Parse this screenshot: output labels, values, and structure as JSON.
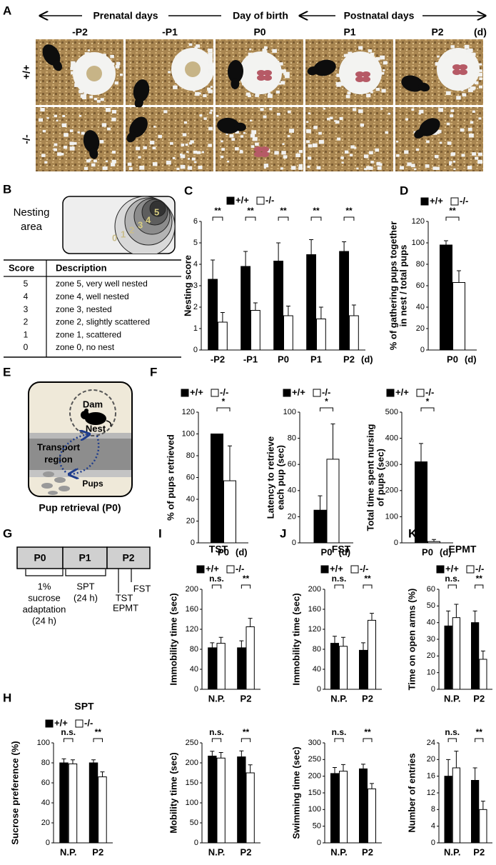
{
  "panel_a": {
    "label": "A",
    "header": [
      "Prenatal days",
      "Day of birth",
      "Postnatal days"
    ],
    "columns": [
      "-P2",
      "-P1",
      "P0",
      "P1",
      "P2"
    ],
    "unit": "(d)",
    "rows": [
      "+/+",
      "-/-"
    ]
  },
  "panel_b": {
    "label": "B",
    "diagram_label": [
      "Nesting",
      "area"
    ],
    "zones": [
      "0",
      "1",
      "2",
      "3",
      "4",
      "5"
    ],
    "table": {
      "header": [
        "Score",
        "Description"
      ],
      "rows": [
        [
          5,
          "zone 5, very well nested"
        ],
        [
          4,
          "zone 4, well nested"
        ],
        [
          3,
          "zone 3, nested"
        ],
        [
          2,
          "zone 2, slightly scattered"
        ],
        [
          1,
          "zone 1, scattered"
        ],
        [
          0,
          "zone 0, no nest"
        ]
      ]
    }
  },
  "panel_e": {
    "label": "E",
    "dam": "Dam",
    "nest": "Nest",
    "region": [
      "Transport",
      "region"
    ],
    "pups": "Pups",
    "caption": "Pup retrieval (P0)"
  },
  "panel_g": {
    "label": "G",
    "days": [
      "P0",
      "P1",
      "P2"
    ],
    "sucrose": [
      "1%",
      "sucrose",
      "adaptation",
      "(24 h)"
    ],
    "spt": [
      "SPT",
      "(24 h)"
    ],
    "tests": [
      "TST",
      "EPMT",
      "FST"
    ]
  },
  "chart_data": [
    {
      "type": "bar",
      "panel": "C",
      "ylabel": [
        "Nesting score"
      ],
      "categories": [
        "-P2",
        "-P1",
        "P0",
        "P1",
        "P2"
      ],
      "x_unit": "(d)",
      "series": [
        {
          "name": "+/+",
          "color": "#000000",
          "values": [
            3.3,
            3.9,
            4.15,
            4.45,
            4.6
          ],
          "errors": [
            0.9,
            0.7,
            0.85,
            0.7,
            0.45
          ]
        },
        {
          "name": "-/-",
          "color": "#ffffff",
          "values": [
            1.3,
            1.85,
            1.6,
            1.45,
            1.6
          ],
          "errors": [
            0.45,
            0.35,
            0.45,
            0.55,
            0.5
          ]
        }
      ],
      "significance": [
        "**",
        "**",
        "**",
        "**",
        "**"
      ],
      "ylim": [
        0,
        6
      ],
      "yticks": [
        0,
        1,
        2,
        3,
        4,
        5,
        6
      ]
    },
    {
      "type": "bar",
      "panel": "D",
      "ylabel": [
        "% of gathering pups together",
        "in nest / total pups"
      ],
      "categories": [
        "P0"
      ],
      "x_unit": "(d)",
      "series": [
        {
          "name": "+/+",
          "color": "#000000",
          "values": [
            98
          ],
          "errors": [
            4
          ]
        },
        {
          "name": "-/-",
          "color": "#ffffff",
          "values": [
            63
          ],
          "errors": [
            11
          ]
        }
      ],
      "significance": [
        "**"
      ],
      "ylim": [
        0,
        120
      ],
      "yticks": [
        0,
        20,
        40,
        60,
        80,
        100,
        120
      ]
    },
    {
      "type": "bar",
      "panel": "F",
      "ylabel": [
        "% of pups retrieved"
      ],
      "categories": [
        "P0"
      ],
      "x_unit": "(d)",
      "series": [
        {
          "name": "+/+",
          "color": "#000000",
          "values": [
            100
          ],
          "errors": [
            0
          ]
        },
        {
          "name": "-/-",
          "color": "#ffffff",
          "values": [
            57
          ],
          "errors": [
            32
          ]
        }
      ],
      "significance": [
        "*"
      ],
      "ylim": [
        0,
        120
      ],
      "yticks": [
        0,
        20,
        40,
        60,
        80,
        100,
        120
      ]
    },
    {
      "type": "bar",
      "ylabel": [
        "Latency to retrieve",
        "each pup (sec)"
      ],
      "categories": [
        "P0"
      ],
      "x_unit": "(d)",
      "series": [
        {
          "name": "+/+",
          "color": "#000000",
          "values": [
            25
          ],
          "errors": [
            11
          ]
        },
        {
          "name": "-/-",
          "color": "#ffffff",
          "values": [
            64
          ],
          "errors": [
            27
          ]
        }
      ],
      "significance": [
        "*"
      ],
      "ylim": [
        0,
        100
      ],
      "yticks": [
        0,
        20,
        40,
        60,
        80,
        100
      ]
    },
    {
      "type": "bar",
      "ylabel": [
        "Total time spent nursing",
        "of pups (sec)"
      ],
      "categories": [
        "P0"
      ],
      "x_unit": "(d)",
      "series": [
        {
          "name": "+/+",
          "color": "#000000",
          "values": [
            310
          ],
          "errors": [
            70
          ]
        },
        {
          "name": "-/-",
          "color": "#ffffff",
          "values": [
            5
          ],
          "errors": [
            8
          ]
        }
      ],
      "significance": [
        "*"
      ],
      "ylim": [
        0,
        500
      ],
      "yticks": [
        0,
        100,
        200,
        300,
        400,
        500
      ]
    },
    {
      "type": "bar",
      "panel": "H",
      "title": "SPT",
      "ylabel": [
        "Sucrose preference (%)"
      ],
      "categories": [
        "N.P.",
        "P2"
      ],
      "series": [
        {
          "name": "+/+",
          "color": "#000000",
          "values": [
            80,
            80
          ],
          "errors": [
            4,
            3
          ]
        },
        {
          "name": "-/-",
          "color": "#ffffff",
          "values": [
            79,
            66
          ],
          "errors": [
            4,
            5
          ]
        }
      ],
      "significance": [
        "n.s.",
        "**"
      ],
      "ylim": [
        0,
        100
      ],
      "yticks": [
        0,
        20,
        40,
        60,
        80,
        100
      ]
    },
    {
      "type": "bar",
      "panel": "I",
      "title": "TST",
      "ylabel": [
        "Immobility time (sec)"
      ],
      "categories": [
        "N.P.",
        "P2"
      ],
      "series": [
        {
          "name": "+/+",
          "color": "#000000",
          "values": [
            83,
            83
          ],
          "errors": [
            10,
            14
          ]
        },
        {
          "name": "-/-",
          "color": "#ffffff",
          "values": [
            92,
            125
          ],
          "errors": [
            12,
            17
          ]
        }
      ],
      "significance": [
        "n.s.",
        "**"
      ],
      "ylim": [
        0,
        200
      ],
      "yticks": [
        0,
        40,
        80,
        120,
        160,
        200
      ]
    },
    {
      "type": "bar",
      "ylabel": [
        "Mobility time (sec)"
      ],
      "categories": [
        "N.P.",
        "P2"
      ],
      "series": [
        {
          "color": "#000000",
          "values": [
            217,
            215
          ],
          "errors": [
            12,
            15
          ]
        },
        {
          "color": "#ffffff",
          "values": [
            212,
            175
          ],
          "errors": [
            14,
            20
          ]
        }
      ],
      "significance": [
        "n.s.",
        "**"
      ],
      "ylim": [
        0,
        250
      ],
      "yticks": [
        0,
        50,
        100,
        150,
        200,
        250
      ]
    },
    {
      "type": "bar",
      "panel": "J",
      "title": "FST",
      "ylabel": [
        "Immobility time (sec)"
      ],
      "categories": [
        "N.P.",
        "P2"
      ],
      "series": [
        {
          "name": "+/+",
          "color": "#000000",
          "values": [
            92,
            78
          ],
          "errors": [
            14,
            15
          ]
        },
        {
          "name": "-/-",
          "color": "#ffffff",
          "values": [
            86,
            138
          ],
          "errors": [
            18,
            14
          ]
        }
      ],
      "significance": [
        "n.s.",
        "**"
      ],
      "ylim": [
        0,
        200
      ],
      "yticks": [
        0,
        40,
        80,
        120,
        160,
        200
      ]
    },
    {
      "type": "bar",
      "ylabel": [
        "Swimming time (sec)"
      ],
      "categories": [
        "N.P.",
        "P2"
      ],
      "series": [
        {
          "color": "#000000",
          "values": [
            208,
            222
          ],
          "errors": [
            18,
            14
          ]
        },
        {
          "color": "#ffffff",
          "values": [
            215,
            162
          ],
          "errors": [
            20,
            16
          ]
        }
      ],
      "significance": [
        "n.s.",
        "**"
      ],
      "ylim": [
        0,
        300
      ],
      "yticks": [
        0,
        50,
        100,
        150,
        200,
        250,
        300
      ]
    },
    {
      "type": "bar",
      "panel": "K",
      "title": "EPMT",
      "ylabel": [
        "Time on open arms (%)"
      ],
      "categories": [
        "N.P.",
        "P2"
      ],
      "series": [
        {
          "name": "+/+",
          "color": "#000000",
          "values": [
            38,
            40
          ],
          "errors": [
            9,
            7
          ]
        },
        {
          "name": "-/-",
          "color": "#ffffff",
          "values": [
            43,
            18
          ],
          "errors": [
            8,
            5
          ]
        }
      ],
      "significance": [
        "n.s.",
        "**"
      ],
      "ylim": [
        0,
        60
      ],
      "yticks": [
        0,
        10,
        20,
        30,
        40,
        50,
        60
      ]
    },
    {
      "type": "bar",
      "ylabel": [
        "Number of entries"
      ],
      "categories": [
        "N.P.",
        "P2"
      ],
      "series": [
        {
          "color": "#000000",
          "values": [
            16,
            15
          ],
          "errors": [
            4,
            3
          ]
        },
        {
          "color": "#ffffff",
          "values": [
            18,
            8
          ],
          "errors": [
            4,
            2
          ]
        }
      ],
      "significance": [
        "n.s.",
        "**"
      ],
      "ylim": [
        0,
        24
      ],
      "yticks": [
        0,
        4,
        8,
        12,
        16,
        20,
        24
      ]
    }
  ]
}
